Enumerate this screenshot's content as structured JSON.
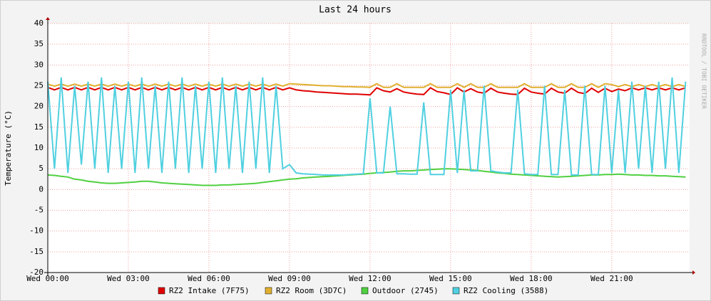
{
  "chart_data": {
    "type": "line",
    "title": "Last 24 hours",
    "y_label": "Temperature (°C)",
    "side_note": "RRDTOOL / TOBI OETIKER",
    "x": [
      0,
      0.25,
      0.5,
      0.75,
      1,
      1.25,
      1.5,
      1.75,
      2,
      2.25,
      2.5,
      2.75,
      3,
      3.25,
      3.5,
      3.75,
      4,
      4.25,
      4.5,
      4.75,
      5,
      5.25,
      5.5,
      5.75,
      6,
      6.25,
      6.5,
      6.75,
      7,
      7.25,
      7.5,
      7.75,
      8,
      8.25,
      8.5,
      8.75,
      9,
      9.25,
      9.5,
      9.75,
      10,
      10.25,
      10.5,
      10.75,
      11,
      11.25,
      11.5,
      11.75,
      12,
      12.25,
      12.5,
      12.75,
      13,
      13.25,
      13.5,
      13.75,
      14,
      14.25,
      14.5,
      14.75,
      15,
      15.25,
      15.5,
      15.75,
      16,
      16.25,
      16.5,
      16.75,
      17,
      17.25,
      17.5,
      17.75,
      18,
      18.25,
      18.5,
      18.75,
      19,
      19.25,
      19.5,
      19.75,
      20,
      20.25,
      20.5,
      20.75,
      21,
      21.25,
      21.5,
      21.75,
      22,
      22.25,
      22.5,
      22.75,
      23,
      23.25,
      23.5,
      23.75
    ],
    "series": [
      {
        "name": "RZ2 Intake (7F75)",
        "color": "#e00000",
        "values": [
          24.6,
          24,
          24.6,
          24,
          24.6,
          24,
          24.6,
          24,
          24.6,
          24,
          24.6,
          24,
          24.6,
          24,
          24.6,
          24,
          24.6,
          24,
          24.6,
          24,
          24.6,
          24,
          24.6,
          24,
          24.6,
          24,
          24.6,
          24,
          24.6,
          24,
          24.6,
          24,
          24.6,
          24,
          24.6,
          24,
          24.5,
          24,
          23.8,
          23.7,
          23.5,
          23.4,
          23.3,
          23.2,
          23.1,
          23.0,
          23.0,
          22.9,
          22.8,
          24.5,
          23.8,
          23.5,
          24.3,
          23.5,
          23.2,
          23.0,
          22.9,
          24.5,
          23.6,
          23.3,
          22.9,
          24.5,
          23.5,
          24.3,
          23.5,
          23.2,
          24.4,
          23.5,
          23.2,
          23.0,
          22.9,
          24.4,
          23.5,
          23.2,
          23.0,
          24.4,
          23.5,
          23.2,
          24.4,
          23.4,
          23.1,
          24.4,
          23.4,
          24.4,
          23.6,
          24.2,
          23.8,
          24.5,
          24,
          24.5,
          24,
          24.5,
          24,
          24.5,
          24,
          24.5
        ]
      },
      {
        "name": "RZ2 Room (3D7C)",
        "color": "#e0b030",
        "values": [
          25.4,
          24.9,
          25.4,
          24.9,
          25.4,
          24.9,
          25.4,
          24.9,
          25.4,
          24.9,
          25.4,
          24.9,
          25.4,
          24.9,
          25.4,
          24.9,
          25.4,
          24.9,
          25.4,
          24.9,
          25.4,
          24.9,
          25.4,
          24.9,
          25.4,
          24.9,
          25.4,
          24.9,
          25.4,
          24.9,
          25.4,
          24.9,
          25.4,
          24.9,
          25.4,
          24.9,
          25.5,
          25.4,
          25.3,
          25.2,
          25.1,
          25.0,
          25.0,
          24.9,
          24.8,
          24.8,
          24.7,
          24.7,
          24.6,
          25.5,
          24.6,
          24.6,
          25.5,
          24.6,
          24.6,
          24.6,
          24.6,
          25.5,
          24.6,
          24.6,
          24.6,
          25.5,
          24.6,
          25.5,
          24.6,
          24.6,
          25.5,
          24.6,
          24.6,
          24.6,
          24.6,
          25.5,
          24.6,
          24.6,
          24.6,
          25.5,
          24.6,
          24.6,
          25.5,
          24.6,
          24.6,
          25.5,
          24.6,
          25.5,
          25.3,
          24.8,
          25.3,
          24.8,
          25.3,
          24.8,
          25.3,
          24.8,
          25.3,
          24.8,
          25.3,
          24.8
        ]
      },
      {
        "name": "Outdoor (2745)",
        "color": "#50d040",
        "values": [
          3.5,
          3.4,
          3.2,
          3.0,
          2.5,
          2.3,
          2.0,
          1.8,
          1.6,
          1.5,
          1.5,
          1.6,
          1.7,
          1.8,
          2.0,
          2.0,
          1.8,
          1.6,
          1.5,
          1.4,
          1.3,
          1.2,
          1.1,
          1.0,
          1.0,
          1.0,
          1.1,
          1.1,
          1.2,
          1.3,
          1.4,
          1.5,
          1.7,
          1.9,
          2.1,
          2.3,
          2.5,
          2.6,
          2.8,
          2.9,
          3.0,
          3.1,
          3.2,
          3.3,
          3.4,
          3.5,
          3.6,
          3.7,
          3.9,
          4.0,
          4.1,
          4.2,
          4.4,
          4.5,
          4.5,
          4.6,
          4.7,
          4.8,
          4.9,
          5.0,
          5.0,
          4.9,
          4.8,
          4.7,
          4.6,
          4.4,
          4.2,
          4.0,
          3.9,
          3.7,
          3.6,
          3.5,
          3.4,
          3.3,
          3.2,
          3.1,
          3.0,
          3.1,
          3.2,
          3.3,
          3.4,
          3.5,
          3.5,
          3.6,
          3.6,
          3.7,
          3.6,
          3.5,
          3.5,
          3.4,
          3.4,
          3.3,
          3.3,
          3.2,
          3.1,
          3.0
        ]
      },
      {
        "name": "RZ2 Cooling (3588)",
        "color": "#50d0e0",
        "values": [
          26,
          5,
          27,
          4,
          25,
          6,
          26,
          5,
          27,
          4,
          25,
          5,
          26,
          4,
          27,
          5,
          25,
          4,
          26,
          5,
          27,
          4,
          25,
          5,
          26,
          4,
          27,
          5,
          25,
          4,
          26,
          5,
          27,
          4,
          25,
          5,
          6,
          4,
          3.8,
          3.7,
          3.6,
          3.5,
          3.5,
          3.5,
          3.5,
          3.6,
          3.7,
          3.8,
          22,
          4,
          4,
          20,
          3.8,
          3.8,
          3.7,
          3.7,
          21,
          3.6,
          3.6,
          3.6,
          24,
          4,
          24,
          4.5,
          4.5,
          25,
          4.5,
          4.2,
          4,
          4,
          24,
          3.8,
          3.6,
          3.6,
          25,
          3.6,
          3.6,
          24,
          3.5,
          3.5,
          25,
          3.6,
          3.6,
          25,
          4,
          24,
          4,
          26,
          5,
          25,
          4,
          26,
          5,
          27,
          4,
          26
        ]
      }
    ],
    "xlim": [
      0,
      23.9
    ],
    "xticks": [
      {
        "value": 0,
        "label": "Wed 00:00"
      },
      {
        "value": 3,
        "label": "Wed 03:00"
      },
      {
        "value": 6,
        "label": "Wed 06:00"
      },
      {
        "value": 9,
        "label": "Wed 09:00"
      },
      {
        "value": 12,
        "label": "Wed 12:00"
      },
      {
        "value": 15,
        "label": "Wed 15:00"
      },
      {
        "value": 18,
        "label": "Wed 18:00"
      },
      {
        "value": 21,
        "label": "Wed 21:00"
      }
    ],
    "ylim": [
      -20,
      40
    ],
    "yticks": [
      -20,
      -15,
      -10,
      -5,
      0,
      5,
      10,
      15,
      20,
      25,
      30,
      35,
      40
    ],
    "grid": true
  }
}
